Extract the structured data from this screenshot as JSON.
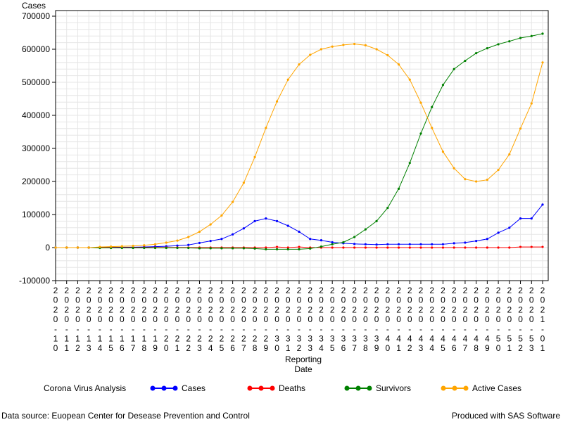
{
  "chart_data": {
    "type": "line",
    "ylabel": "Cases",
    "xlabel": [
      "Reporting",
      "Date"
    ],
    "ylim": [
      -100000,
      700000
    ],
    "yticks": [
      -100000,
      0,
      100000,
      200000,
      300000,
      400000,
      500000,
      600000,
      700000
    ],
    "grid": true,
    "legend_position": "bottom",
    "legend_title": "Corona Virus Analysis",
    "categories": [
      "2020-10",
      "2020-11",
      "2020-12",
      "2020-13",
      "2020-14",
      "2020-15",
      "2020-16",
      "2020-17",
      "2020-18",
      "2020-19",
      "2020-20",
      "2020-21",
      "2020-22",
      "2020-23",
      "2020-24",
      "2020-25",
      "2020-26",
      "2020-27",
      "2020-28",
      "2020-29",
      "2020-30",
      "2020-31",
      "2020-32",
      "2020-33",
      "2020-34",
      "2020-35",
      "2020-36",
      "2020-37",
      "2020-38",
      "2020-39",
      "2020-40",
      "2020-41",
      "2020-42",
      "2020-43",
      "2020-44",
      "2020-45",
      "2020-46",
      "2020-47",
      "2020-48",
      "2020-49",
      "2020-50",
      "2020-51",
      "2020-52",
      "2020-53",
      "2021-01"
    ],
    "series": [
      {
        "name": "Cases",
        "color": "#0000ff",
        "values": [
          0,
          0,
          0,
          0,
          500,
          800,
          1000,
          1200,
          2000,
          3000,
          4000,
          6000,
          8000,
          14000,
          20000,
          26000,
          40000,
          58000,
          80000,
          88000,
          80000,
          66000,
          48000,
          26000,
          22000,
          16000,
          13000,
          11000,
          10000,
          9000,
          10000,
          10000,
          10000,
          10000,
          10000,
          10000,
          13000,
          15000,
          20000,
          26000,
          45000,
          60000,
          88000,
          88000,
          130000
        ]
      },
      {
        "name": "Deaths",
        "color": "#ff0000",
        "values": [
          0,
          0,
          0,
          0,
          0,
          0,
          0,
          0,
          0,
          0,
          0,
          0,
          0,
          0,
          0,
          0,
          0,
          0,
          0,
          0,
          2000,
          0,
          2000,
          0,
          0,
          0,
          0,
          0,
          0,
          0,
          0,
          0,
          0,
          0,
          0,
          0,
          0,
          0,
          0,
          0,
          0,
          0,
          2000,
          2000,
          2000
        ]
      },
      {
        "name": "Survivors",
        "color": "#008000",
        "values": [
          0,
          0,
          0,
          0,
          -1000,
          -1000,
          -1000,
          -1000,
          -1000,
          -1000,
          -1000,
          -1000,
          -1000,
          -2000,
          -2000,
          -2000,
          -2000,
          -2000,
          -3000,
          -5000,
          -5000,
          -5000,
          -5000,
          -3000,
          3000,
          10000,
          16000,
          32000,
          55000,
          80000,
          120000,
          178000,
          256000,
          345000,
          425000,
          492000,
          540000,
          565000,
          588000,
          603000,
          615000,
          624000,
          634000,
          640000,
          647000
        ]
      },
      {
        "name": "Active Cases",
        "color": "#ffa500",
        "values": [
          0,
          0,
          0,
          0,
          2000,
          3000,
          4000,
          5000,
          7000,
          10000,
          15000,
          21000,
          32000,
          48000,
          70000,
          97000,
          138000,
          196000,
          274000,
          362000,
          442000,
          508000,
          554000,
          583000,
          600000,
          608000,
          613000,
          616000,
          612000,
          600000,
          582000,
          554000,
          508000,
          438000,
          362000,
          290000,
          240000,
          207000,
          200000,
          205000,
          235000,
          282000,
          360000,
          436000,
          560000
        ]
      }
    ]
  },
  "footer": {
    "source": "Data source: Euopean Center for Desease Prevention and Control",
    "produced": "Produced with SAS Software"
  }
}
